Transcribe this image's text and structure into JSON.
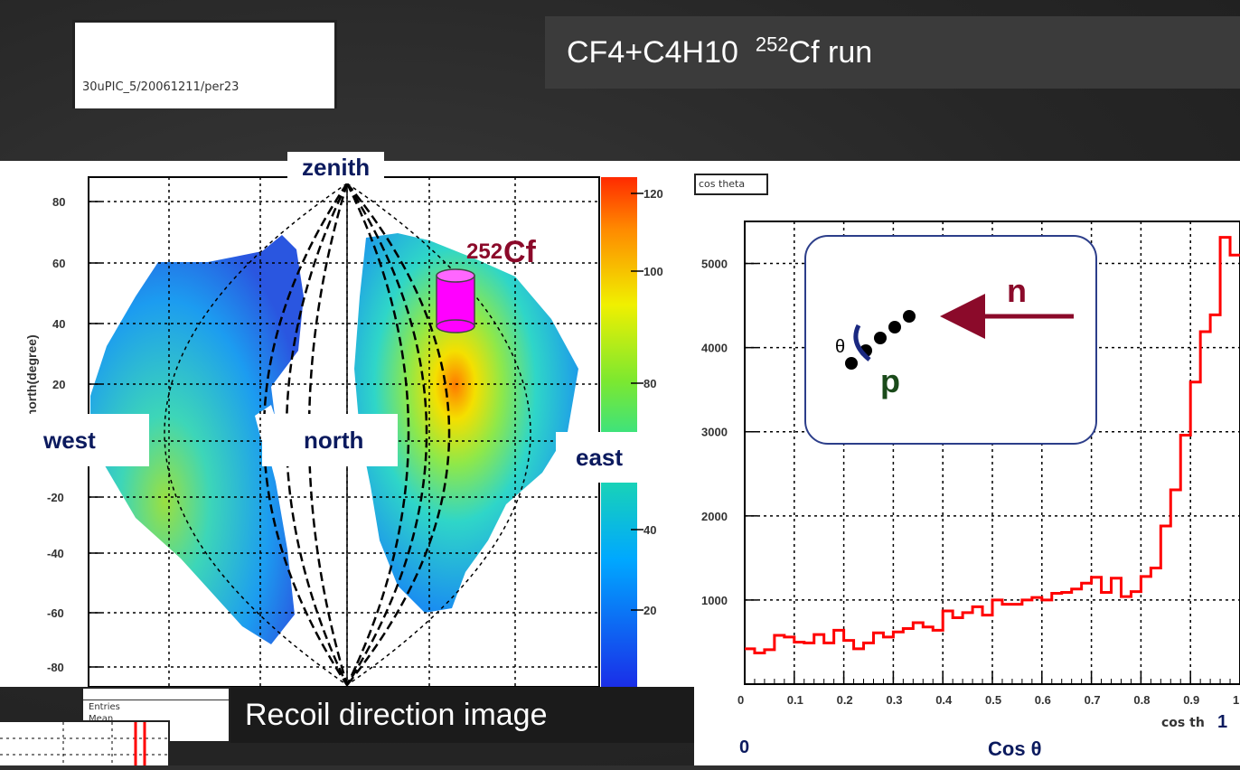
{
  "header": {
    "run_label": "CF4+C4H10",
    "run_iso": "252",
    "run_suffix": "Cf run",
    "file_label": "30uPIC_5/20061211/per23"
  },
  "skymap": {
    "ylabel": "center-north(degree)",
    "yticks": [
      "80",
      "60",
      "40",
      "20",
      "-20",
      "-40",
      "-60",
      "-80"
    ],
    "colorbar_ticks": [
      "120",
      "100",
      "80",
      "40",
      "20"
    ],
    "labels": {
      "zenith": "zenith",
      "west": "west",
      "north": "north",
      "east": "east"
    },
    "source_label_iso": "252",
    "source_label_el": "Cf",
    "stats": {
      "title": "",
      "entries_label": "Entries",
      "entries_value": "",
      "mean_label": "Mean",
      "mean_value": ""
    }
  },
  "caption": "Recoil direction image",
  "histogram_panel": {
    "title": "cos theta",
    "xtick_labels": [
      "0",
      "0.1",
      "0.2",
      "0.3",
      "0.4",
      "0.5",
      "0.6",
      "0.7",
      "0.8",
      "0.9",
      "1"
    ],
    "ytick_labels": [
      "1000",
      "2000",
      "3000",
      "4000",
      "5000"
    ],
    "axis_tick_title": "cos th",
    "big_x0": "0",
    "big_x1": "1",
    "big_xlabel": "Cos θ",
    "inset": {
      "n": "n",
      "p": "p",
      "theta": "θ"
    }
  },
  "chart_data": {
    "type": "histogram",
    "xlabel": "Cos θ",
    "ylabel": "",
    "xlim": [
      0,
      1
    ],
    "ylim": [
      0,
      5500
    ],
    "bin_width": 0.02,
    "series": [
      {
        "color": "#ff0000",
        "values": [
          420,
          370,
          410,
          580,
          560,
          500,
          490,
          590,
          490,
          640,
          520,
          420,
          490,
          610,
          560,
          620,
          660,
          730,
          680,
          640,
          870,
          790,
          850,
          920,
          820,
          1000,
          950,
          950,
          1000,
          1030,
          1000,
          1080,
          1090,
          1130,
          1200,
          1270,
          1090,
          1260,
          1040,
          1100,
          1280,
          1380,
          1880,
          2310,
          2960,
          3590,
          4190,
          4390,
          5310,
          5100
        ]
      }
    ]
  }
}
